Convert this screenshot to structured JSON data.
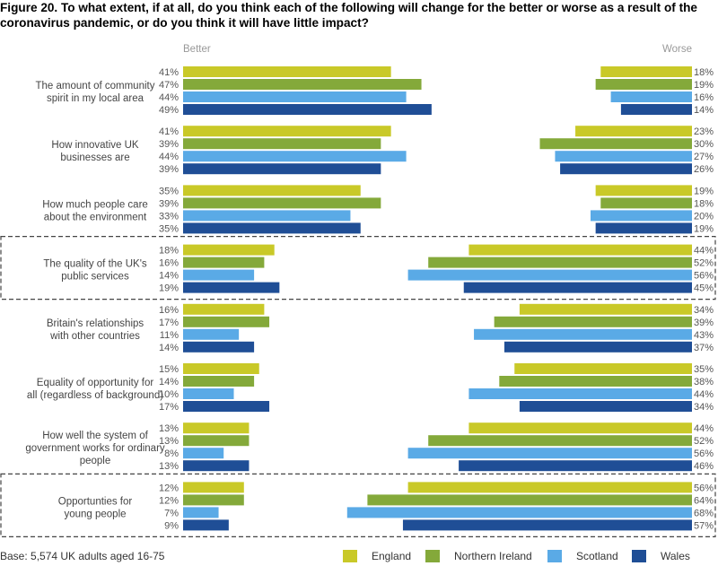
{
  "title": "Figure 20. To what extent, if at all, do you think each of the following will change for the better or worse as a result of the coronavirus pandemic, or do you think it will have little impact?",
  "base_note": "Base: 5,574 UK adults aged 16-75",
  "colors": {
    "England": "#c9c928",
    "Northern Ireland": "#84a93a",
    "Scotland": "#5aaae6",
    "Wales": "#1f4e96"
  },
  "chart_data": {
    "type": "bar",
    "orientation": "horizontal",
    "subtitle_left": "Better",
    "subtitle_right": "Worse",
    "series_names": [
      "England",
      "Northern Ireland",
      "Scotland",
      "Wales"
    ],
    "groups": [
      {
        "label": "The amount of community spirit in my local area",
        "lines": [
          "The amount of community",
          "spirit in my local area"
        ],
        "better": [
          41,
          47,
          44,
          49
        ],
        "worse": [
          18,
          19,
          16,
          14
        ],
        "highlighted": false
      },
      {
        "label": "How innovative UK businesses are",
        "lines": [
          "How innovative UK",
          "businesses are"
        ],
        "better": [
          41,
          39,
          44,
          39
        ],
        "worse": [
          23,
          30,
          27,
          26
        ],
        "highlighted": false
      },
      {
        "label": "How much people care about the environment",
        "lines": [
          "How much people care",
          "about the environment"
        ],
        "better": [
          35,
          39,
          33,
          35
        ],
        "worse": [
          19,
          18,
          20,
          19
        ],
        "highlighted": false
      },
      {
        "label": "The quality of the UK's public services",
        "lines": [
          "The quality of the UK's",
          "public services"
        ],
        "better": [
          18,
          16,
          14,
          19
        ],
        "worse": [
          44,
          52,
          56,
          45
        ],
        "highlighted": true
      },
      {
        "label": "Britain's relationships with other countries",
        "lines": [
          "Britain's relationships",
          "with other countries"
        ],
        "better": [
          16,
          17,
          11,
          14
        ],
        "worse": [
          34,
          39,
          43,
          37
        ],
        "highlighted": false
      },
      {
        "label": "Equality of opportunity for all (regardless of background)",
        "lines": [
          "Equality of opportunity for",
          "all (regardless of background)"
        ],
        "better": [
          15,
          14,
          10,
          17
        ],
        "worse": [
          35,
          38,
          44,
          34
        ],
        "highlighted": false
      },
      {
        "label": "How well the system of government works for ordinary people",
        "lines": [
          "How well the system of",
          "government works for ordinary",
          "people"
        ],
        "better": [
          13,
          13,
          8,
          13
        ],
        "worse": [
          44,
          52,
          56,
          46
        ],
        "highlighted": false
      },
      {
        "label": "Opportunties for young people",
        "lines": [
          "Opportunties for",
          "young people"
        ],
        "better": [
          12,
          12,
          7,
          9
        ],
        "worse": [
          56,
          64,
          68,
          57
        ],
        "highlighted": true
      }
    ]
  }
}
